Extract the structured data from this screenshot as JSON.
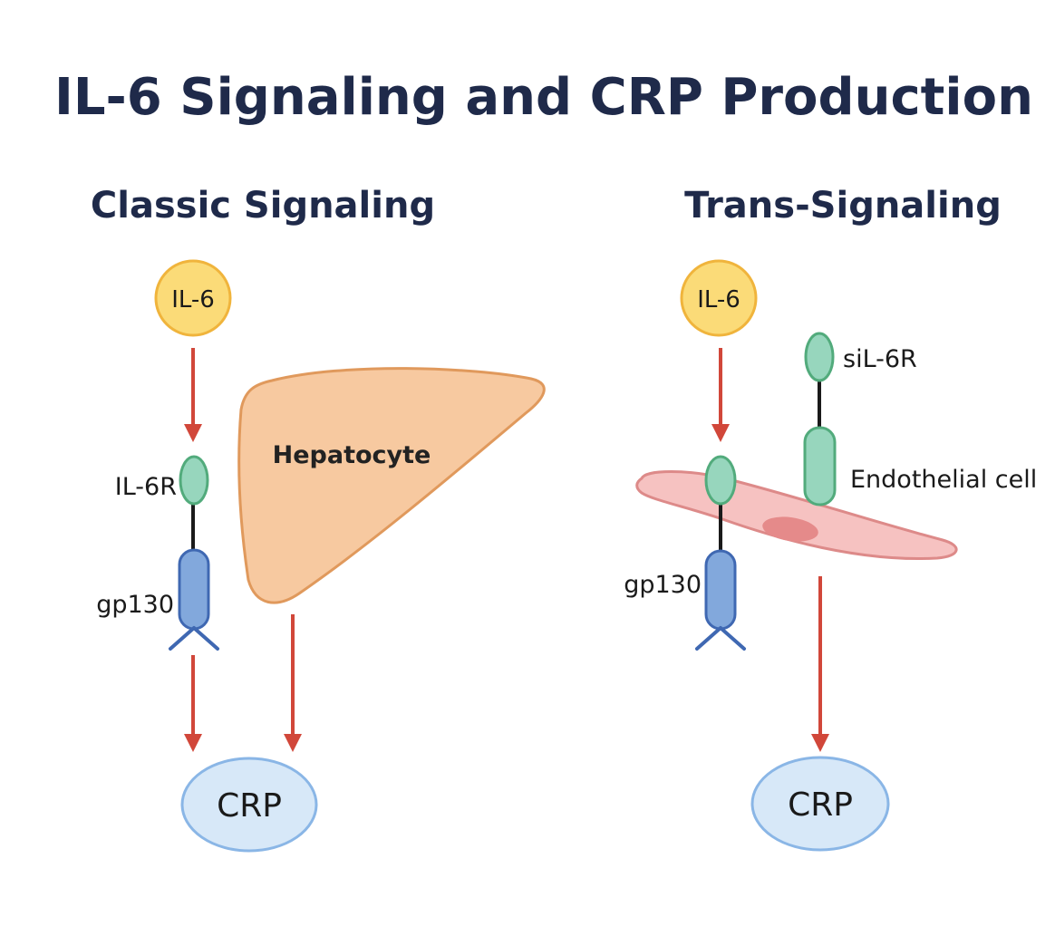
{
  "title": "IL-6 Signaling and CRP Production",
  "classic": {
    "heading": "Classic Signaling",
    "ligand": "IL-6",
    "receptor": "IL-6R",
    "transducer": "gp130",
    "cell": "Hepatocyte",
    "output": "CRP"
  },
  "trans": {
    "heading": "Trans-Signaling",
    "ligand": "IL-6",
    "soluble_receptor": "siL-6R",
    "cell": "Endothelial cell",
    "transducer": "gp130",
    "output": "CRP"
  },
  "colors": {
    "title": "#1f2a4a",
    "il6_fill": "#fbdb78",
    "il6_stroke": "#f0b43c",
    "receptor_fill": "#97d6bd",
    "receptor_stroke": "#52ab7c",
    "gp130_fill": "#82a8dc",
    "gp130_stroke": "#3f68b2",
    "hepatocyte_fill": "#f7c9a0",
    "hepatocyte_stroke": "#e0995c",
    "endothelial_fill": "#f6c2c1",
    "endothelial_stroke": "#dd8a89",
    "nucleus_fill": "#e58a8a",
    "crp_fill": "#d7e8f8",
    "crp_stroke": "#8ab6e6",
    "arrow": "#d1473a"
  }
}
